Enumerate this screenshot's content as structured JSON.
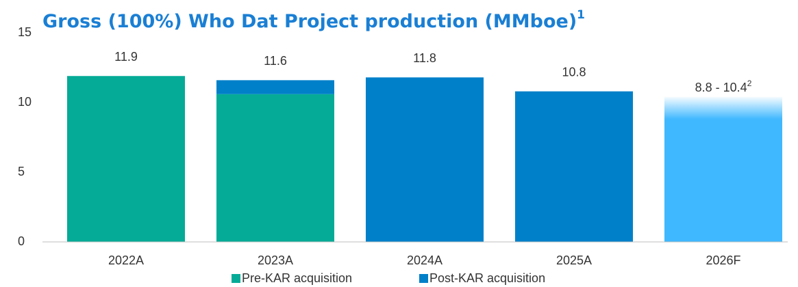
{
  "chart_data": {
    "type": "stacked_bar",
    "title": "Gross (100%) Who Dat Project production (MMboe)",
    "title_footnote": "1",
    "categories": [
      "2022A",
      "2023A",
      "2024A",
      "2025A",
      "2026F"
    ],
    "series": [
      {
        "name": "Pre-KAR acquisition",
        "color": "#05ab97",
        "values": [
          11.9,
          10.6,
          null,
          null,
          null
        ]
      },
      {
        "name": "Post-KAR acquisition",
        "color": "#0080c9",
        "values": [
          null,
          1.0,
          11.8,
          10.8,
          null
        ]
      }
    ],
    "totals": [
      11.9,
      11.6,
      11.8,
      10.8,
      null
    ],
    "forecast": {
      "category": "2026F",
      "range": [
        8.8,
        10.4
      ],
      "label": "8.8 - 10.4",
      "footnote": "2",
      "color": "#40b8ff"
    },
    "ylim": [
      0,
      15
    ],
    "yticks": [
      0,
      5,
      10,
      15
    ],
    "grid": false,
    "legend": "bottom"
  }
}
